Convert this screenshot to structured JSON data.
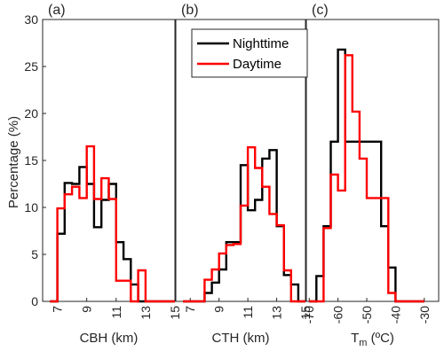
{
  "legend": [
    {
      "name": "Nighttime",
      "color": "#000000"
    },
    {
      "name": "Daytime",
      "color": "#ff0000"
    }
  ],
  "chart_data": [
    {
      "type": "histogram",
      "panel_label": "(a)",
      "xlabel": "CBH (km)",
      "ylabel": "Percentage (%)",
      "xlim": [
        6,
        15
      ],
      "ylim": [
        0,
        30
      ],
      "xticks": [
        7,
        9,
        11,
        13,
        15
      ],
      "yticks": [
        0,
        5,
        10,
        15,
        20,
        25,
        30
      ],
      "bin_edges": [
        6.5,
        7,
        7.5,
        8,
        8.5,
        9,
        9.5,
        10,
        10.5,
        11,
        11.5,
        12,
        12.5,
        13,
        13.5,
        14,
        14.5,
        15
      ],
      "series": [
        {
          "name": "Nighttime",
          "color": "#000000",
          "values": [
            0,
            7.2,
            12.6,
            12.5,
            14.3,
            12.5,
            7.9,
            10.8,
            12.5,
            6.3,
            4.5,
            1.8,
            0,
            0,
            0,
            0,
            0
          ]
        },
        {
          "name": "Daytime",
          "color": "#ff0000",
          "values": [
            0,
            9.9,
            11.4,
            12.2,
            11.0,
            16.5,
            10.9,
            13.1,
            10.9,
            2.2,
            2.2,
            0,
            3.3,
            0,
            0,
            0,
            0
          ]
        }
      ]
    },
    {
      "type": "histogram",
      "panel_label": "(b)",
      "xlabel": "CTH (km)",
      "ylabel": "",
      "xlim": [
        6,
        15
      ],
      "ylim": [
        0,
        30
      ],
      "xticks": [
        7,
        9,
        11,
        13,
        15
      ],
      "yticks": [
        0,
        5,
        10,
        15,
        20,
        25,
        30
      ],
      "bin_edges": [
        6.5,
        7,
        7.5,
        8,
        8.5,
        9,
        9.5,
        10,
        10.5,
        11,
        11.5,
        12,
        12.5,
        13,
        13.5,
        14,
        14.5,
        15
      ],
      "series": [
        {
          "name": "Nighttime",
          "color": "#000000",
          "values": [
            0,
            0,
            0,
            0.9,
            2.0,
            3.4,
            6.3,
            6.3,
            14.5,
            9.7,
            10.8,
            15.2,
            16.1,
            8.0,
            2.8,
            1.8,
            0
          ]
        },
        {
          "name": "Daytime",
          "color": "#ff0000",
          "values": [
            0,
            0,
            0,
            2.3,
            3.4,
            5.1,
            6.0,
            6.1,
            10.2,
            16.4,
            14.2,
            12.2,
            9.3,
            8.1,
            3.3,
            0,
            0
          ]
        }
      ]
    },
    {
      "type": "histogram",
      "panel_label": "(c)",
      "xlabel": "T",
      "xlabel_sub": "m",
      "xlabel_units": " (ºC)",
      "ylabel": "",
      "xlim": [
        -71,
        -25
      ],
      "ylim": [
        0,
        30
      ],
      "xticks": [
        -70,
        -60,
        -50,
        -40,
        -30
      ],
      "yticks": [
        0,
        5,
        10,
        15,
        20,
        25,
        30
      ],
      "bin_edges": [
        -70,
        -67.5,
        -65,
        -62.5,
        -60,
        -57.5,
        -55,
        -52.5,
        -50,
        -47.5,
        -45,
        -42.5,
        -40,
        -37.5,
        -35,
        -32.5,
        -30
      ],
      "series": [
        {
          "name": "Nighttime",
          "color": "#000000",
          "values": [
            0,
            2.7,
            8.0,
            17.0,
            26.8,
            17.0,
            17.0,
            17.0,
            17.0,
            17.0,
            8.0,
            3.6,
            0,
            0,
            0,
            0
          ]
        },
        {
          "name": "Daytime",
          "color": "#ff0000",
          "values": [
            0,
            0,
            7.8,
            13.5,
            11.8,
            26.2,
            20.2,
            15.2,
            11.0,
            11.0,
            11.0,
            0.9,
            0,
            0,
            0,
            0
          ]
        }
      ]
    }
  ]
}
